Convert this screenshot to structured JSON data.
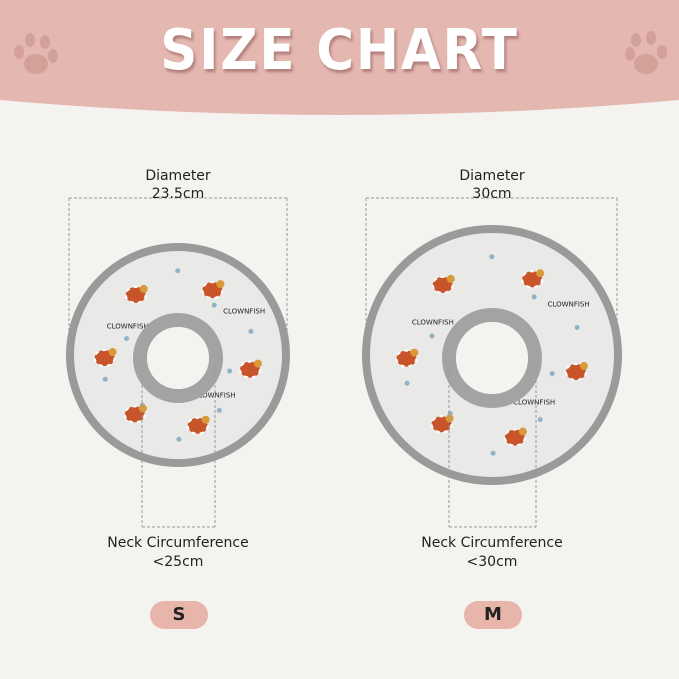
{
  "title": "SIZE CHART",
  "colors": {
    "banner": "#e4b7b1",
    "paw": "#d3a19a",
    "background": "#f5f3ef",
    "size_badge": "#e8b5ab",
    "collar_rim": "#9a9a9a",
    "fish": "#c8542a"
  },
  "collar_pattern_text": "CLOWNFISH",
  "sizes": [
    {
      "badge": "S",
      "diameter_label": "Diameter",
      "diameter_value": "23.5cm",
      "neck_label": "Neck Circumference",
      "neck_value": "<25cm"
    },
    {
      "badge": "M",
      "diameter_label": "Diameter",
      "diameter_value": "30cm",
      "neck_label": "Neck Circumference",
      "neck_value": "<30cm"
    }
  ]
}
